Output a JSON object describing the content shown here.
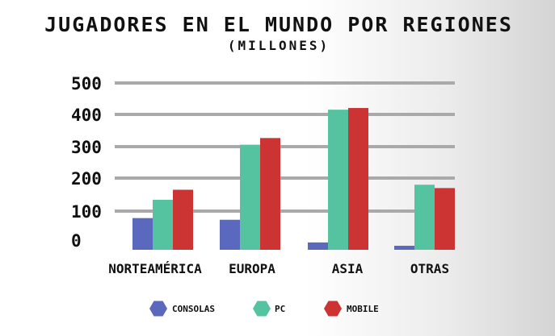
{
  "chart_data": {
    "type": "bar",
    "title": "JUGADORES EN EL MUNDO POR REGIONES",
    "subtitle": "(MILLONES)",
    "categories": [
      "NORTEAMÉRICA",
      "EUROPA",
      "ASIA",
      "OTRAS"
    ],
    "series": [
      {
        "name": "CONSOLAS",
        "values": [
          95,
          90,
          22,
          12
        ],
        "color": "#5a68bd"
      },
      {
        "name": "PC",
        "values": [
          150,
          315,
          420,
          195
        ],
        "color": "#56c3a0"
      },
      {
        "name": "MOBILE",
        "values": [
          180,
          335,
          425,
          185
        ],
        "color": "#cc3333"
      }
    ],
    "yticks": [
      "0",
      "100",
      "200",
      "300",
      "400",
      "500"
    ],
    "ylim": [
      0,
      500
    ],
    "grid": true,
    "legend": "bottom",
    "legend_marker": "hexagon"
  }
}
